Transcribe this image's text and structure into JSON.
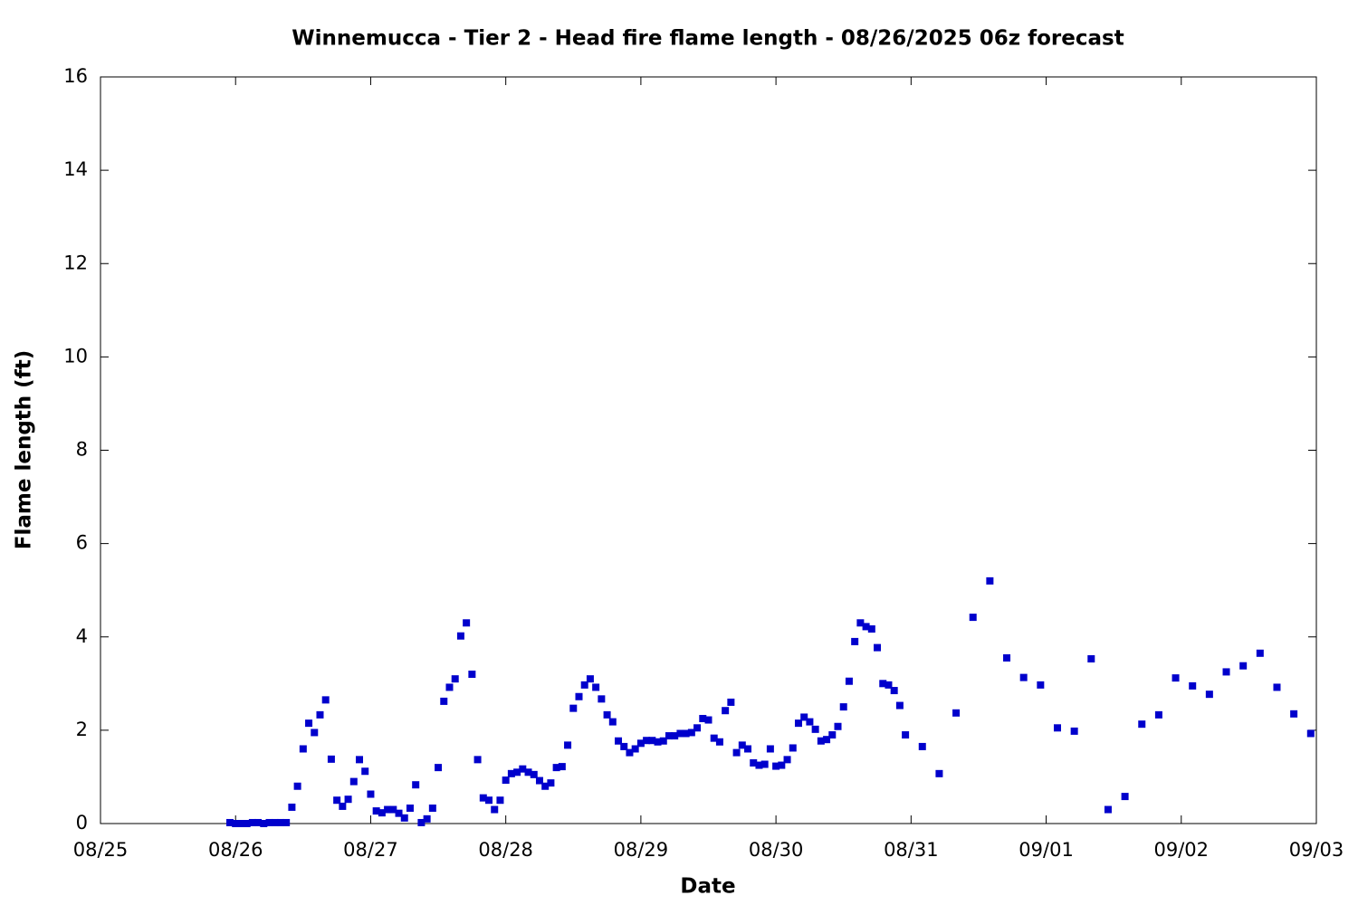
{
  "chart_data": {
    "type": "scatter",
    "title": "Winnemucca - Tier 2 - Head fire flame length - 08/26/2025 06z forecast",
    "x_label": "Date",
    "y_label": "Flame length (ft)",
    "color": "#0000cc",
    "xlim": [
      0,
      216
    ],
    "xticks": [
      {
        "value": 0,
        "label": "08/25"
      },
      {
        "value": 24,
        "label": "08/26"
      },
      {
        "value": 48,
        "label": "08/27"
      },
      {
        "value": 72,
        "label": "08/28"
      },
      {
        "value": 96,
        "label": "08/29"
      },
      {
        "value": 120,
        "label": "08/30"
      },
      {
        "value": 144,
        "label": "08/31"
      },
      {
        "value": 168,
        "label": "09/01"
      },
      {
        "value": 192,
        "label": "09/02"
      },
      {
        "value": 216,
        "label": "09/03"
      }
    ],
    "ylim": [
      0,
      16
    ],
    "yticks": [
      0,
      2,
      4,
      6,
      8,
      10,
      12,
      14,
      16
    ],
    "x": [
      23,
      24,
      25,
      26,
      27,
      28,
      29,
      30,
      31,
      32,
      33,
      34,
      35,
      36,
      37,
      38,
      39,
      40,
      41,
      42,
      43,
      44,
      45,
      46,
      47,
      48,
      49,
      50,
      51,
      52,
      53,
      54,
      55,
      56,
      57,
      58,
      59,
      60,
      61,
      62,
      63,
      64,
      65,
      66,
      67,
      68,
      69,
      70,
      71,
      72,
      73,
      74,
      75,
      76,
      77,
      78,
      79,
      80,
      81,
      82,
      83,
      84,
      85,
      86,
      87,
      88,
      89,
      90,
      91,
      92,
      93,
      94,
      95,
      96,
      97,
      98,
      99,
      100,
      101,
      102,
      103,
      104,
      105,
      106,
      107,
      108,
      109,
      110,
      111,
      112,
      113,
      114,
      115,
      116,
      117,
      118,
      119,
      120,
      121,
      122,
      123,
      124,
      125,
      126,
      127,
      128,
      129,
      130,
      131,
      132,
      133,
      134,
      135,
      136,
      137,
      138,
      139,
      140,
      141,
      142,
      143,
      146,
      149,
      152,
      155,
      158,
      161,
      164,
      167,
      170,
      173,
      176,
      179,
      182,
      185,
      188,
      191,
      194,
      197,
      200,
      203,
      206,
      209,
      212,
      215
    ],
    "values": [
      0.02,
      0,
      0,
      0,
      0.02,
      0.02,
      0,
      0.02,
      0.02,
      0.02,
      0.02,
      0.35,
      0.8,
      1.6,
      2.15,
      1.95,
      2.33,
      2.65,
      1.38,
      0.5,
      0.37,
      0.52,
      0.9,
      1.37,
      1.12,
      0.63,
      0.27,
      0.23,
      0.3,
      0.3,
      0.22,
      0.12,
      0.33,
      0.83,
      0.02,
      0.1,
      0.33,
      1.2,
      2.62,
      2.92,
      3.1,
      4.02,
      4.3,
      3.2,
      1.37,
      0.55,
      0.5,
      0.3,
      0.5,
      0.93,
      1.07,
      1.1,
      1.17,
      1.1,
      1.05,
      0.92,
      0.8,
      0.87,
      1.2,
      1.22,
      1.68,
      2.47,
      2.72,
      2.97,
      3.1,
      2.92,
      2.67,
      2.33,
      2.18,
      1.77,
      1.65,
      1.52,
      1.6,
      1.72,
      1.78,
      1.78,
      1.75,
      1.77,
      1.88,
      1.88,
      1.93,
      1.93,
      1.95,
      2.05,
      2.25,
      2.22,
      1.83,
      1.75,
      2.42,
      2.6,
      1.52,
      1.68,
      1.6,
      1.3,
      1.25,
      1.27,
      1.6,
      1.23,
      1.25,
      1.37,
      1.62,
      2.15,
      2.28,
      2.18,
      2.02,
      1.77,
      1.8,
      1.9,
      2.08,
      2.5,
      3.05,
      3.9,
      4.3,
      4.22,
      4.17,
      3.77,
      3.0,
      2.97,
      2.85,
      2.53,
      1.9,
      1.65,
      1.07,
      2.37,
      4.42,
      5.2,
      3.55,
      3.13,
      2.97,
      2.05,
      1.98,
      3.53,
      0.3,
      0.58,
      2.13,
      2.33,
      3.12,
      2.95,
      2.77,
      3.25,
      3.38,
      3.65,
      2.92,
      2.35,
      1.93
    ]
  }
}
